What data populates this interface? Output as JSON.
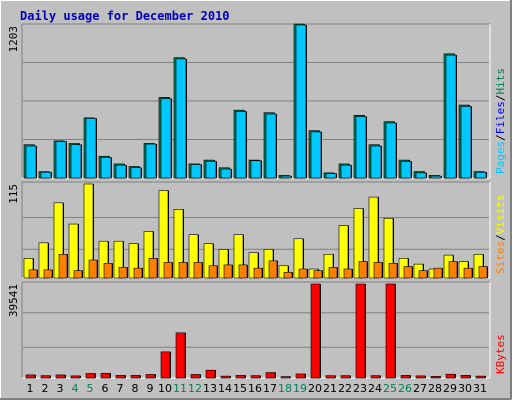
{
  "chart_data": [
    {
      "type": "bar",
      "title": "Daily usage for December 2010",
      "categories": [
        "1",
        "2",
        "3",
        "4",
        "5",
        "6",
        "7",
        "8",
        "9",
        "10",
        "11",
        "12",
        "13",
        "14",
        "15",
        "16",
        "17",
        "18",
        "19",
        "20",
        "21",
        "22",
        "23",
        "24",
        "25",
        "26",
        "27",
        "28",
        "29",
        "30",
        "31"
      ],
      "max_label": "1203",
      "ylim": [
        0,
        1203
      ],
      "series": [
        {
          "name": "Hits",
          "values": [
            260,
            50,
            290,
            270,
            470,
            170,
            110,
            90,
            270,
            630,
            940,
            110,
            140,
            80,
            530,
            140,
            510,
            20,
            1203,
            370,
            40,
            110,
            490,
            260,
            440,
            140,
            50,
            20,
            970,
            570,
            50
          ]
        },
        {
          "name": "Files",
          "values": [
            250,
            45,
            285,
            260,
            465,
            160,
            100,
            80,
            265,
            620,
            930,
            105,
            130,
            70,
            520,
            135,
            500,
            15,
            1195,
            360,
            35,
            100,
            480,
            250,
            430,
            130,
            40,
            15,
            960,
            560,
            45
          ]
        },
        {
          "name": "Pages",
          "values": [
            0,
            0,
            0,
            0,
            0,
            0,
            0,
            0,
            0,
            0,
            0,
            0,
            0,
            0,
            0,
            0,
            0,
            0,
            0,
            0,
            0,
            0,
            0,
            0,
            0,
            0,
            0,
            0,
            0,
            0,
            0
          ]
        }
      ],
      "legend": [
        "Pages",
        "Files",
        "Hits"
      ],
      "colors": {
        "Hits": "#00805c",
        "Files": "#0000ff",
        "Pages": "#00c8ff"
      }
    },
    {
      "type": "bar",
      "max_label": "115",
      "ylim": [
        0,
        115
      ],
      "series": [
        {
          "name": "Visits",
          "values": [
            24,
            43,
            92,
            66,
            115,
            45,
            45,
            42,
            57,
            107,
            84,
            53,
            42,
            35,
            53,
            31,
            35,
            15,
            48,
            11,
            29,
            64,
            85,
            99,
            73,
            24,
            17,
            11,
            28,
            20,
            29
          ]
        },
        {
          "name": "Sites",
          "values": [
            10,
            10,
            29,
            9,
            22,
            18,
            13,
            12,
            24,
            19,
            19,
            19,
            15,
            16,
            16,
            12,
            21,
            7,
            11,
            9,
            13,
            11,
            20,
            19,
            18,
            14,
            9,
            12,
            20,
            12,
            14
          ]
        }
      ],
      "legend": [
        "Sites",
        "Visits"
      ],
      "colors": {
        "Visits": "#ffff00",
        "Sites": "#ff8000"
      }
    },
    {
      "type": "bar",
      "max_label": "39541",
      "ylim": [
        0,
        39541
      ],
      "series": [
        {
          "name": "KBytes",
          "values": [
            1300,
            1000,
            1300,
            900,
            1900,
            2000,
            1100,
            1100,
            1500,
            11000,
            19000,
            1500,
            3300,
            800,
            1100,
            1000,
            2300,
            600,
            1700,
            39541,
            1000,
            1000,
            39541,
            1000,
            39541,
            1100,
            900,
            700,
            1600,
            1100,
            800
          ]
        }
      ],
      "legend": [
        "KBytes"
      ],
      "colors": {
        "KBytes": "#ff0000"
      }
    }
  ],
  "weekend_days": [
    4,
    5,
    11,
    12,
    18,
    19,
    25,
    26
  ],
  "colors": {
    "panel_bg": "#c0c0c0",
    "grid": "#808080",
    "title": "#0000c0",
    "day_weekday": "#000000",
    "day_weekend": "#00805c"
  }
}
